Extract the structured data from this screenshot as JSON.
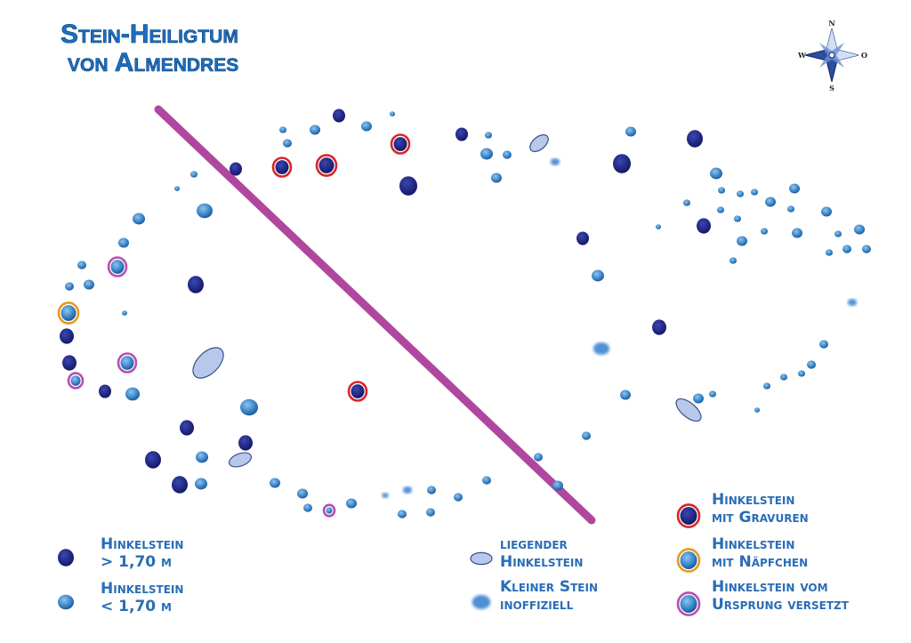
{
  "header": {
    "title": [
      "Stein-Heiligtum",
      "von Almendres"
    ]
  },
  "compass": {
    "n": "N",
    "w": "W",
    "o": "O",
    "s": "S"
  },
  "legend": {
    "items": [
      {
        "line1": "Hinkelstein",
        "line2": "> 1,70 m"
      },
      {
        "line1": "Hinkelstein",
        "line2": "< 1,70 m"
      },
      {
        "line1": "liegender",
        "line2": "Hinkelstein"
      },
      {
        "line1": "Kleiner Stein",
        "line2": "inoffiziell"
      },
      {
        "line1": "Hinkelstein",
        "line2": "mit Gravuren"
      },
      {
        "line1": "Hinkelstein",
        "line2": "mit Näpfchen"
      },
      {
        "line1": "Hinkelstein vom",
        "line2": "Ursprung versetzt"
      }
    ]
  }
}
